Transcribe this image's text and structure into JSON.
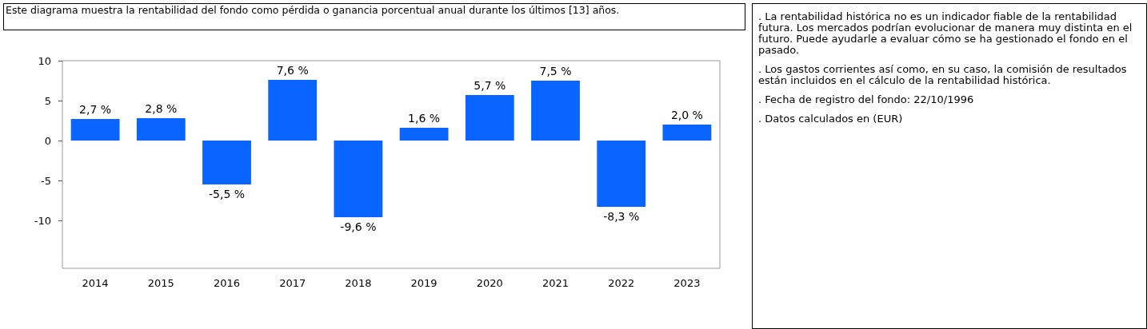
{
  "chart_data": {
    "type": "bar",
    "title": "Este diagrama muestra la rentabilidad del fondo como pérdida o ganancia porcentual anual durante los últimos [13] años.",
    "categories": [
      "2014",
      "2015",
      "2016",
      "2017",
      "2018",
      "2019",
      "2020",
      "2021",
      "2022",
      "2023"
    ],
    "values": [
      2.7,
      2.8,
      -5.5,
      7.6,
      -9.6,
      1.6,
      5.7,
      7.5,
      -8.3,
      2.0
    ],
    "value_labels": [
      "2,7 %",
      "2,8 %",
      "-5,5 %",
      "7,6 %",
      "-9,6 %",
      "1,6 %",
      "5,7 %",
      "7,5 %",
      "-8,3 %",
      "2,0 %"
    ],
    "color": "#0a64ff",
    "ylim": [
      -16,
      10
    ],
    "yticks": [
      -10,
      -5,
      0,
      5,
      10
    ],
    "grid": false,
    "annotations": [
      ". La rentabilidad histórica no es un indicador fiable de la rentabilidad futura. Los mercados podrían evolucionar de manera muy distinta en el futuro. Puede ayudarle a evaluar cómo se ha gestionado el fondo en el pasado.",
      ". Los gastos corrientes así como, en su caso, la comisión de resultados están incluidos en el cálculo de la rentabilidad histórica.",
      ". Fecha de registro del fondo: 22/10/1996",
      ". Datos calculados en (EUR)"
    ]
  }
}
